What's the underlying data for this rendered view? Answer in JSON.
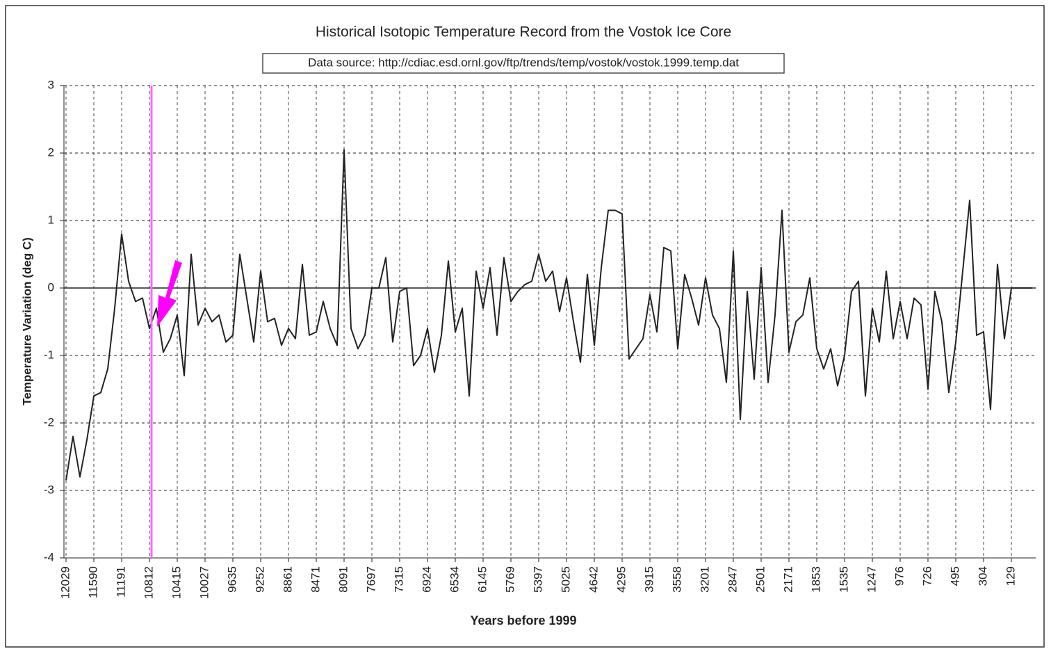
{
  "chart_data": {
    "type": "line",
    "title": "Historical Isotopic Temperature Record from the Vostok Ice Core",
    "subtitle": "Data source: http://cdiac.esd.ornl.gov/ftp/trends/temp/vostok/vostok.1999.temp.dat",
    "x_label": "Years before 1999",
    "y_label": "Temperature Variation (deg C)",
    "categories": [
      "12029",
      null,
      null,
      null,
      "11590",
      null,
      null,
      null,
      "11191",
      null,
      null,
      null,
      "10812",
      null,
      null,
      null,
      "10415",
      null,
      null,
      null,
      "10027",
      null,
      null,
      null,
      "9635",
      null,
      null,
      null,
      "9252",
      null,
      null,
      null,
      "8861",
      null,
      null,
      null,
      "8471",
      null,
      null,
      null,
      "8091",
      null,
      null,
      null,
      "7697",
      null,
      null,
      null,
      "7315",
      null,
      null,
      null,
      "6924",
      null,
      null,
      null,
      "6534",
      null,
      null,
      null,
      "6145",
      null,
      null,
      null,
      "5769",
      null,
      null,
      null,
      "5397",
      null,
      null,
      null,
      "5025",
      null,
      null,
      null,
      "4642",
      null,
      null,
      null,
      "4295",
      null,
      null,
      null,
      "3915",
      null,
      null,
      null,
      "3558",
      null,
      null,
      null,
      "3201",
      null,
      null,
      null,
      "2847",
      null,
      null,
      null,
      "2501",
      null,
      null,
      null,
      "2171",
      null,
      null,
      null,
      "1853",
      null,
      null,
      null,
      "1535",
      null,
      null,
      null,
      "1247",
      null,
      null,
      null,
      "976",
      null,
      null,
      null,
      "726",
      null,
      null,
      null,
      "495",
      null,
      null,
      null,
      "304",
      null,
      null,
      null,
      "129",
      null,
      null,
      null
    ],
    "values": [
      -2.85,
      -2.2,
      -2.8,
      -2.25,
      -1.6,
      -1.55,
      -1.2,
      -0.3,
      0.8,
      0.1,
      -0.2,
      -0.15,
      -0.6,
      -0.3,
      -0.95,
      -0.75,
      -0.4,
      -1.3,
      0.5,
      -0.55,
      -0.3,
      -0.5,
      -0.4,
      -0.8,
      -0.7,
      0.5,
      -0.15,
      -0.8,
      0.25,
      -0.5,
      -0.45,
      -0.85,
      -0.6,
      -0.75,
      0.35,
      -0.7,
      -0.65,
      -0.2,
      -0.6,
      -0.85,
      2.05,
      -0.6,
      -0.9,
      -0.7,
      0.0,
      0.0,
      0.45,
      -0.8,
      -0.05,
      0.0,
      -1.15,
      -1.0,
      -0.6,
      -1.25,
      -0.7,
      0.4,
      -0.65,
      -0.3,
      -1.6,
      0.25,
      -0.3,
      0.3,
      -0.7,
      0.45,
      -0.2,
      -0.05,
      0.05,
      0.1,
      0.5,
      0.1,
      0.25,
      -0.35,
      0.15,
      -0.5,
      -1.1,
      0.2,
      -0.85,
      0.3,
      1.15,
      1.15,
      1.1,
      -1.05,
      -0.9,
      -0.75,
      -0.1,
      -0.65,
      0.6,
      0.55,
      -0.9,
      0.2,
      -0.15,
      -0.55,
      0.15,
      -0.4,
      -0.6,
      -1.4,
      0.55,
      -1.95,
      -0.05,
      -1.35,
      0.3,
      -1.4,
      -0.4,
      1.15,
      -0.95,
      -0.5,
      -0.4,
      0.15,
      -0.9,
      -1.2,
      -0.9,
      -1.45,
      -1.0,
      -0.05,
      0.1,
      -1.6,
      -0.3,
      -0.8,
      0.25,
      -0.75,
      -0.2,
      -0.75,
      -0.15,
      -0.25,
      -1.5,
      -0.05,
      -0.5,
      -1.55,
      -0.8,
      0.25,
      1.3,
      -0.7,
      -0.65,
      -1.8,
      0.35,
      -0.75,
      0.0,
      0.0,
      0.0,
      0.0
    ],
    "color": "#222222",
    "ylim": [
      -4,
      3
    ],
    "yticks": [
      -4,
      -3,
      -2,
      -1,
      0,
      1,
      2,
      3
    ],
    "grid": true
  }
}
